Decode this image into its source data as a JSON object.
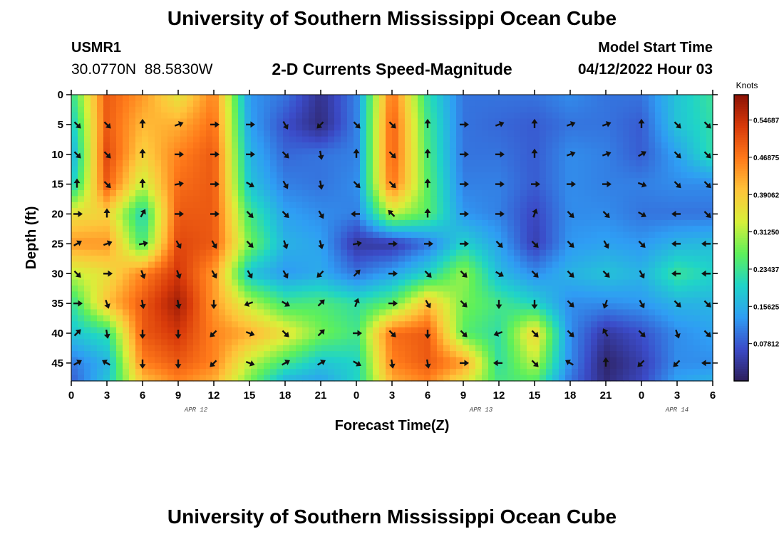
{
  "header": {
    "title": "University of Southern Mississippi Ocean Cube",
    "station_id": "USMR1",
    "station_coords": "30.0770N  88.5830W",
    "subtitle": "2-D Currents Speed-Magnitude",
    "model_start_label": "Model Start Time",
    "model_start_value": "04/12/2022 Hour 03"
  },
  "footer": {
    "title": "University of Southern Mississippi Ocean Cube"
  },
  "colors": {
    "arrow": "#111111",
    "colormap": [
      "#2d1e5a",
      "#3b4bc8",
      "#2f9df4",
      "#1fd4c8",
      "#5ef05a",
      "#d8f03a",
      "#ffc43a",
      "#ff7a1a",
      "#d83a0a",
      "#8b1206"
    ]
  },
  "chart_data": {
    "type": "heatmap",
    "xlabel": "Forecast Time(Z)",
    "ylabel": "Depth (ft)",
    "x_tick_labels": [
      "0",
      "3",
      "6",
      "9",
      "12",
      "15",
      "18",
      "21",
      "0",
      "3",
      "6",
      "9",
      "12",
      "15",
      "18",
      "21",
      "0",
      "3",
      "6"
    ],
    "x_range_hours": [
      0,
      54
    ],
    "date_labels": [
      {
        "label": "APR 12",
        "at_hour": 10.5
      },
      {
        "label": "APR 13",
        "at_hour": 34.5
      },
      {
        "label": "APR 14",
        "at_hour": 51
      }
    ],
    "y_ticks": [
      0,
      5,
      10,
      15,
      20,
      25,
      30,
      35,
      40,
      45
    ],
    "y_range": [
      0,
      48
    ],
    "colorbar": {
      "title": "Knots",
      "range": [
        0.0,
        0.6
      ],
      "ticks": [
        0.07812,
        0.15625,
        0.23437,
        0.3125,
        0.39062,
        0.46875,
        0.54687
      ],
      "tick_labels": [
        "0.07812",
        "0.15625",
        "0.23437",
        "0.31250",
        "0.39062",
        "0.46875",
        "0.54687"
      ]
    },
    "speed_grid": {
      "times": [
        0,
        3,
        6,
        9,
        12,
        15,
        18,
        21,
        24,
        27,
        30,
        33,
        36,
        39,
        42,
        45,
        48,
        51,
        54
      ],
      "depths": [
        0,
        5,
        10,
        15,
        20,
        25,
        30,
        35,
        40,
        45,
        48
      ],
      "values": [
        [
          0.22,
          0.5,
          0.44,
          0.35,
          0.46,
          0.13,
          0.1,
          0.03,
          0.11,
          0.48,
          0.22,
          0.1,
          0.1,
          0.1,
          0.12,
          0.1,
          0.1,
          0.18,
          0.23
        ],
        [
          0.18,
          0.5,
          0.41,
          0.42,
          0.48,
          0.14,
          0.07,
          0.02,
          0.11,
          0.5,
          0.24,
          0.1,
          0.09,
          0.08,
          0.1,
          0.1,
          0.08,
          0.18,
          0.22
        ],
        [
          0.14,
          0.52,
          0.38,
          0.46,
          0.5,
          0.16,
          0.09,
          0.1,
          0.11,
          0.5,
          0.25,
          0.1,
          0.1,
          0.08,
          0.12,
          0.11,
          0.08,
          0.14,
          0.22
        ],
        [
          0.18,
          0.5,
          0.32,
          0.48,
          0.5,
          0.18,
          0.11,
          0.1,
          0.12,
          0.48,
          0.26,
          0.11,
          0.11,
          0.08,
          0.12,
          0.11,
          0.11,
          0.12,
          0.12
        ],
        [
          0.36,
          0.38,
          0.2,
          0.5,
          0.5,
          0.24,
          0.14,
          0.12,
          0.11,
          0.32,
          0.26,
          0.13,
          0.11,
          0.06,
          0.12,
          0.12,
          0.1,
          0.1,
          0.1
        ],
        [
          0.44,
          0.44,
          0.24,
          0.52,
          0.5,
          0.28,
          0.16,
          0.14,
          0.04,
          0.04,
          0.1,
          0.2,
          0.14,
          0.05,
          0.13,
          0.14,
          0.13,
          0.16,
          0.17
        ],
        [
          0.32,
          0.36,
          0.46,
          0.54,
          0.44,
          0.18,
          0.13,
          0.15,
          0.1,
          0.14,
          0.2,
          0.3,
          0.17,
          0.12,
          0.16,
          0.18,
          0.16,
          0.23,
          0.2
        ],
        [
          0.22,
          0.4,
          0.5,
          0.58,
          0.44,
          0.32,
          0.24,
          0.25,
          0.22,
          0.26,
          0.4,
          0.28,
          0.24,
          0.2,
          0.12,
          0.12,
          0.13,
          0.16,
          0.16
        ],
        [
          0.18,
          0.22,
          0.5,
          0.54,
          0.46,
          0.42,
          0.36,
          0.28,
          0.24,
          0.48,
          0.5,
          0.26,
          0.22,
          0.38,
          0.12,
          0.04,
          0.07,
          0.12,
          0.14
        ],
        [
          0.1,
          0.16,
          0.46,
          0.5,
          0.46,
          0.32,
          0.24,
          0.18,
          0.2,
          0.46,
          0.5,
          0.44,
          0.22,
          0.32,
          0.12,
          0.01,
          0.05,
          0.12,
          0.12
        ],
        [
          0.08,
          0.18,
          0.4,
          0.46,
          0.42,
          0.28,
          0.16,
          0.14,
          0.2,
          0.42,
          0.46,
          0.36,
          0.24,
          0.26,
          0.1,
          0.02,
          0.06,
          0.14,
          0.16
        ]
      ]
    },
    "arrows": {
      "times": [
        0,
        3,
        6,
        9,
        12,
        15,
        18,
        21,
        24,
        27,
        30,
        33,
        36,
        39,
        42,
        45,
        48,
        51,
        54
      ],
      "depths": [
        5,
        10,
        15,
        20,
        25,
        30,
        35,
        40,
        45
      ],
      "directions_deg": [
        [
          135,
          135,
          0,
          70,
          90,
          90,
          150,
          225,
          135,
          135,
          0,
          90,
          70,
          0,
          70,
          70,
          0,
          135,
          135
        ],
        [
          135,
          135,
          0,
          90,
          90,
          90,
          135,
          170,
          0,
          135,
          0,
          90,
          90,
          0,
          70,
          70,
          60,
          135,
          135
        ],
        [
          0,
          135,
          0,
          80,
          90,
          120,
          150,
          170,
          135,
          135,
          0,
          90,
          90,
          90,
          90,
          90,
          110,
          135,
          135
        ],
        [
          90,
          0,
          30,
          90,
          90,
          135,
          135,
          150,
          270,
          315,
          0,
          90,
          90,
          20,
          135,
          135,
          120,
          270,
          135
        ],
        [
          60,
          70,
          80,
          150,
          150,
          135,
          160,
          165,
          80,
          90,
          90,
          90,
          135,
          135,
          135,
          150,
          135,
          270,
          270
        ],
        [
          135,
          90,
          160,
          160,
          150,
          150,
          150,
          225,
          45,
          90,
          135,
          135,
          120,
          135,
          135,
          135,
          150,
          270,
          270
        ],
        [
          90,
          160,
          170,
          170,
          180,
          250,
          120,
          45,
          20,
          90,
          150,
          135,
          180,
          180,
          135,
          200,
          150,
          135,
          135
        ],
        [
          45,
          170,
          180,
          180,
          225,
          110,
          135,
          45,
          90,
          135,
          180,
          135,
          250,
          135,
          135,
          330,
          135,
          160,
          135
        ],
        [
          60,
          300,
          180,
          180,
          225,
          110,
          60,
          60,
          120,
          170,
          170,
          90,
          270,
          135,
          300,
          0,
          225,
          225,
          270
        ]
      ]
    }
  }
}
